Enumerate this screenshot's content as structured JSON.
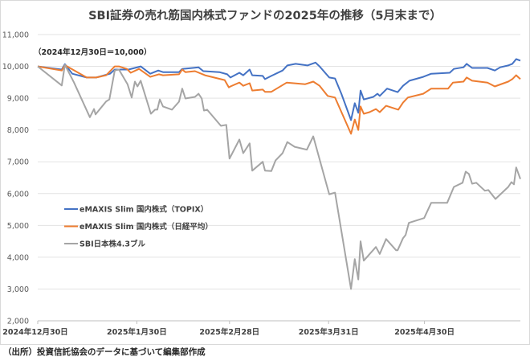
{
  "chart_data": {
    "type": "line",
    "title": "SBI証券の売れ筋国内株式ファンドの2025年の推移（5月末まで）",
    "annotation": "（2024年12月30日＝10,000）",
    "source": "（出所）投資信託協会のデータに基づいて編集部作成",
    "x_unit": "days since 2024-12-30",
    "xlim": [
      0,
      151
    ],
    "ylim": [
      2000,
      11000
    ],
    "yticks": [
      2000,
      3000,
      4000,
      5000,
      6000,
      7000,
      8000,
      9000,
      10000,
      11000
    ],
    "ytick_labels": [
      "2,000",
      "3,000",
      "4,000",
      "5,000",
      "6,000",
      "7,000",
      "8,000",
      "9,000",
      "10,000",
      "11,000"
    ],
    "xticks": [
      0,
      31,
      60,
      91,
      121
    ],
    "xtick_labels": [
      "2024年12月30日",
      "2025年1月30日",
      "2025年2月28日",
      "2025年3月31日",
      "2025年4月30日"
    ],
    "grid": true,
    "legend_position": "center-left",
    "series": [
      {
        "name": "eMAXIS Slim 国内株式（TOPIX）",
        "color": "#4472c4",
        "points": [
          [
            0,
            10000
          ],
          [
            7.5,
            9900
          ],
          [
            8.5,
            10070
          ],
          [
            10.8,
            9770
          ],
          [
            15.3,
            9650
          ],
          [
            18.3,
            9650
          ],
          [
            22.6,
            9770
          ],
          [
            24.1,
            9900
          ],
          [
            28.4,
            9900
          ],
          [
            32.2,
            10000
          ],
          [
            35.2,
            9770
          ],
          [
            37.7,
            9870
          ],
          [
            39.2,
            9820
          ],
          [
            44.2,
            9820
          ],
          [
            45.2,
            9920
          ],
          [
            48.5,
            9950
          ],
          [
            50.3,
            9970
          ],
          [
            51.8,
            9850
          ],
          [
            56.8,
            9820
          ],
          [
            59.3,
            9750
          ],
          [
            60.3,
            9650
          ],
          [
            63.1,
            9800
          ],
          [
            64.3,
            9720
          ],
          [
            66.3,
            9900
          ],
          [
            67.1,
            9720
          ],
          [
            70.4,
            9700
          ],
          [
            71.1,
            9600
          ],
          [
            73.1,
            9700
          ],
          [
            76.6,
            9870
          ],
          [
            78.1,
            10030
          ],
          [
            80.7,
            10080
          ],
          [
            84.4,
            10030
          ],
          [
            86.9,
            10120
          ],
          [
            88.2,
            10000
          ],
          [
            91.2,
            9650
          ],
          [
            93,
            9620
          ],
          [
            95,
            9140
          ],
          [
            98,
            8310
          ],
          [
            99.2,
            8840
          ],
          [
            100.3,
            8540
          ],
          [
            101,
            9240
          ],
          [
            102,
            8960
          ],
          [
            105,
            9040
          ],
          [
            106.3,
            9140
          ],
          [
            107,
            9070
          ],
          [
            109.3,
            9300
          ],
          [
            112.6,
            9190
          ],
          [
            114.3,
            9390
          ],
          [
            116.3,
            9550
          ],
          [
            120.6,
            9670
          ],
          [
            123.1,
            9770
          ],
          [
            128.9,
            9800
          ],
          [
            130.2,
            9920
          ],
          [
            133.2,
            9970
          ],
          [
            134.2,
            10080
          ],
          [
            135.9,
            9950
          ],
          [
            140.7,
            9950
          ],
          [
            143,
            9870
          ],
          [
            144.7,
            9970
          ],
          [
            147.2,
            10030
          ],
          [
            148.5,
            10080
          ],
          [
            149.7,
            10230
          ],
          [
            151,
            10180
          ]
        ]
      },
      {
        "name": "eMAXIS Slim 国内株式（日経平均）",
        "color": "#ed7d31",
        "points": [
          [
            0,
            10000
          ],
          [
            7.5,
            9870
          ],
          [
            8.5,
            10040
          ],
          [
            15.3,
            9650
          ],
          [
            18.3,
            9650
          ],
          [
            21.4,
            9720
          ],
          [
            24.1,
            10000
          ],
          [
            25.4,
            10000
          ],
          [
            27.9,
            9920
          ],
          [
            29.1,
            9800
          ],
          [
            31.7,
            9920
          ],
          [
            35.2,
            9670
          ],
          [
            37.9,
            9750
          ],
          [
            39.2,
            9720
          ],
          [
            44.2,
            9750
          ],
          [
            45.2,
            9900
          ],
          [
            46.2,
            9820
          ],
          [
            49.2,
            9850
          ],
          [
            52.3,
            9720
          ],
          [
            58.5,
            9570
          ],
          [
            59.8,
            9340
          ],
          [
            60.3,
            9370
          ],
          [
            63.1,
            9490
          ],
          [
            64.3,
            9390
          ],
          [
            66.3,
            9470
          ],
          [
            67.1,
            9240
          ],
          [
            70.4,
            9270
          ],
          [
            71.1,
            9200
          ],
          [
            73.1,
            9200
          ],
          [
            77.9,
            9490
          ],
          [
            83.7,
            9440
          ],
          [
            86.2,
            9520
          ],
          [
            88.2,
            9390
          ],
          [
            90.7,
            9070
          ],
          [
            93,
            9020
          ],
          [
            98,
            7880
          ],
          [
            99.2,
            8330
          ],
          [
            100.3,
            8000
          ],
          [
            101,
            8740
          ],
          [
            102,
            8510
          ],
          [
            103.8,
            8560
          ],
          [
            105.8,
            8660
          ],
          [
            107,
            8560
          ],
          [
            109,
            8760
          ],
          [
            112.8,
            8640
          ],
          [
            114.3,
            8860
          ],
          [
            115.8,
            9020
          ],
          [
            120.6,
            9140
          ],
          [
            123.1,
            9300
          ],
          [
            128.4,
            9300
          ],
          [
            129.9,
            9490
          ],
          [
            133.2,
            9520
          ],
          [
            134.2,
            9650
          ],
          [
            135.9,
            9550
          ],
          [
            140.7,
            9490
          ],
          [
            143,
            9370
          ],
          [
            147.2,
            9520
          ],
          [
            148.5,
            9600
          ],
          [
            149.7,
            9720
          ],
          [
            151,
            9600
          ]
        ]
      },
      {
        "name": "SBI日本株4.3ブル",
        "color": "#a5a5a5",
        "points": [
          [
            0,
            10000
          ],
          [
            7.5,
            9400
          ],
          [
            8.5,
            10050
          ],
          [
            11.3,
            9500
          ],
          [
            16.3,
            8400
          ],
          [
            17.6,
            8660
          ],
          [
            18.1,
            8490
          ],
          [
            21.4,
            8900
          ],
          [
            22.4,
            8960
          ],
          [
            24.1,
            9870
          ],
          [
            25.4,
            9900
          ],
          [
            28.1,
            9440
          ],
          [
            29.4,
            9020
          ],
          [
            30.4,
            9520
          ],
          [
            31.2,
            9370
          ],
          [
            32.2,
            9550
          ],
          [
            35.4,
            8510
          ],
          [
            36.7,
            8640
          ],
          [
            37.4,
            8640
          ],
          [
            38.2,
            8960
          ],
          [
            39.2,
            8740
          ],
          [
            42,
            8640
          ],
          [
            44.2,
            8890
          ],
          [
            45.2,
            9300
          ],
          [
            46.2,
            8990
          ],
          [
            49.2,
            9040
          ],
          [
            50.3,
            9140
          ],
          [
            51.3,
            8990
          ],
          [
            52,
            8610
          ],
          [
            53,
            8640
          ],
          [
            57.3,
            8130
          ],
          [
            59,
            8160
          ],
          [
            60,
            7100
          ],
          [
            63.1,
            7700
          ],
          [
            64.3,
            7270
          ],
          [
            66.3,
            7580
          ],
          [
            67.1,
            6720
          ],
          [
            70.4,
            7000
          ],
          [
            71.1,
            6720
          ],
          [
            73.1,
            6710
          ],
          [
            74.4,
            7040
          ],
          [
            76.6,
            7270
          ],
          [
            78.1,
            7620
          ],
          [
            80.4,
            7470
          ],
          [
            84.2,
            7380
          ],
          [
            86.2,
            7800
          ],
          [
            91.2,
            5980
          ],
          [
            93,
            6030
          ],
          [
            98,
            3000
          ],
          [
            99.2,
            3940
          ],
          [
            100.3,
            3300
          ],
          [
            101,
            4500
          ],
          [
            102,
            3890
          ],
          [
            105.8,
            4320
          ],
          [
            107,
            4100
          ],
          [
            109,
            4570
          ],
          [
            112.1,
            4220
          ],
          [
            112.6,
            4220
          ],
          [
            114.3,
            4600
          ],
          [
            115.1,
            4700
          ],
          [
            116.1,
            5080
          ],
          [
            120.9,
            5230
          ],
          [
            123.1,
            5710
          ],
          [
            128.1,
            5710
          ],
          [
            130.2,
            6210
          ],
          [
            132.9,
            6340
          ],
          [
            133.9,
            6690
          ],
          [
            134.9,
            6620
          ],
          [
            135.9,
            6310
          ],
          [
            137.2,
            6340
          ],
          [
            139.9,
            6090
          ],
          [
            141,
            6110
          ],
          [
            143.2,
            5830
          ],
          [
            147.2,
            6210
          ],
          [
            148.2,
            6360
          ],
          [
            149,
            6290
          ],
          [
            149.7,
            6820
          ],
          [
            151,
            6460
          ]
        ]
      }
    ]
  }
}
